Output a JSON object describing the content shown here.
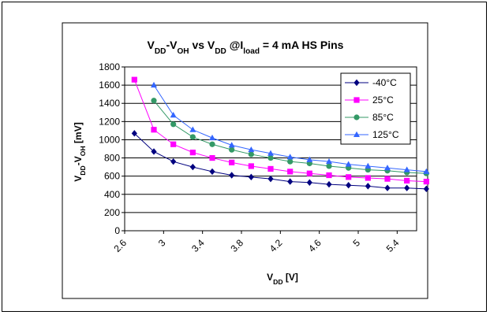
{
  "chart_data": {
    "type": "line",
    "title": {
      "parts": [
        {
          "text": "V",
          "sub": false
        },
        {
          "text": "DD",
          "sub": true
        },
        {
          "text": "-V",
          "sub": false
        },
        {
          "text": "OH",
          "sub": true
        },
        {
          "text": " vs V",
          "sub": false
        },
        {
          "text": "DD",
          "sub": true
        },
        {
          "text": " @I",
          "sub": false
        },
        {
          "text": "load",
          "sub": true
        },
        {
          "text": " = 4 mA HS Pins",
          "sub": false
        }
      ]
    },
    "xlabel": {
      "parts": [
        {
          "text": "V",
          "sub": false
        },
        {
          "text": "DD",
          "sub": true
        },
        {
          "text": " [V]",
          "sub": false
        }
      ]
    },
    "ylabel": {
      "parts": [
        {
          "text": "V",
          "sub": false
        },
        {
          "text": "DD",
          "sub": true
        },
        {
          "text": "-V",
          "sub": false
        },
        {
          "text": "OH",
          "sub": true
        },
        {
          "text": " [mV]",
          "sub": false
        }
      ]
    },
    "xlim": [
      2.6,
      5.6
    ],
    "ylim": [
      0,
      1800
    ],
    "x_ticks": [
      "2.6",
      "3",
      "3.4",
      "3.8",
      "4.2",
      "4.6",
      "5",
      "5.4"
    ],
    "x_tick_values": [
      2.6,
      3.0,
      3.4,
      3.8,
      4.2,
      4.6,
      5.0,
      5.4
    ],
    "y_ticks": [
      "0",
      "200",
      "400",
      "600",
      "800",
      "1000",
      "1200",
      "1400",
      "1600",
      "1800"
    ],
    "y_tick_values": [
      0,
      200,
      400,
      600,
      800,
      1000,
      1200,
      1400,
      1600,
      1800
    ],
    "grid": "horizontal",
    "legend_position": "top-right",
    "series": [
      {
        "name": "-40°C",
        "color": "#00007f",
        "marker": "diamond",
        "x": [
          2.7,
          2.9,
          3.1,
          3.3,
          3.5,
          3.7,
          3.9,
          4.1,
          4.3,
          4.5,
          4.7,
          4.9,
          5.1,
          5.3,
          5.5,
          5.7
        ],
        "y": [
          1070,
          870,
          760,
          700,
          650,
          610,
          590,
          570,
          540,
          530,
          510,
          500,
          490,
          470,
          470,
          460
        ]
      },
      {
        "name": "25°C",
        "color": "#ff00ff",
        "marker": "square",
        "x": [
          2.7,
          2.9,
          3.1,
          3.3,
          3.5,
          3.7,
          3.9,
          4.1,
          4.3,
          4.5,
          4.7,
          4.9,
          5.1,
          5.3,
          5.5,
          5.7
        ],
        "y": [
          1660,
          1110,
          950,
          860,
          800,
          750,
          710,
          680,
          650,
          630,
          610,
          590,
          580,
          570,
          550,
          540
        ]
      },
      {
        "name": "85°C",
        "color": "#339966",
        "marker": "circle",
        "x": [
          2.9,
          3.1,
          3.3,
          3.5,
          3.7,
          3.9,
          4.1,
          4.3,
          4.5,
          4.7,
          4.9,
          5.1,
          5.3,
          5.5,
          5.7
        ],
        "y": [
          1430,
          1170,
          1030,
          950,
          890,
          840,
          800,
          760,
          740,
          710,
          690,
          670,
          660,
          640,
          630
        ]
      },
      {
        "name": "125°C",
        "color": "#3366ff",
        "marker": "triangle",
        "x": [
          2.9,
          3.1,
          3.3,
          3.5,
          3.7,
          3.9,
          4.1,
          4.3,
          4.5,
          4.7,
          4.9,
          5.1,
          5.3,
          5.5,
          5.7
        ],
        "y": [
          1600,
          1270,
          1110,
          1020,
          940,
          890,
          850,
          810,
          780,
          760,
          730,
          710,
          690,
          670,
          650
        ]
      }
    ]
  }
}
